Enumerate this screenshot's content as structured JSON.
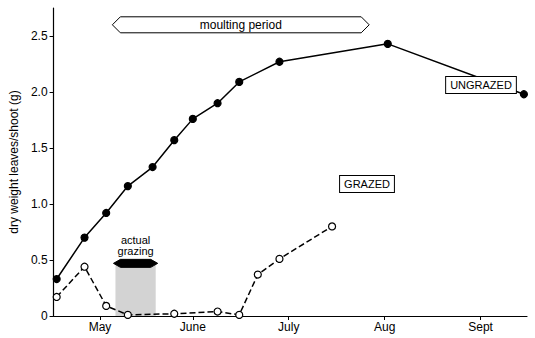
{
  "chart_data": {
    "type": "line",
    "y_label": "dry weight leaves/shoot (g)",
    "xlim": [
      0,
      153
    ],
    "xticks": [
      {
        "value": 15,
        "label": "May"
      },
      {
        "value": 45,
        "label": "June"
      },
      {
        "value": 76,
        "label": "July"
      },
      {
        "value": 107,
        "label": "Aug"
      },
      {
        "value": 138,
        "label": "Sept"
      }
    ],
    "ylim": [
      0,
      2.75
    ],
    "yticks": [
      0,
      0.5,
      {
        "value": 1,
        "label": "1.0"
      },
      1.5,
      {
        "value": 2,
        "label": "2.0"
      },
      2.5
    ],
    "grid": false,
    "series": [
      {
        "name": "UNGRAZED",
        "color": "#000000",
        "marker": "circle",
        "line_style": "solid",
        "x": [
          1,
          10,
          17,
          24,
          32,
          39,
          45,
          53,
          60,
          73,
          108,
          152
        ],
        "values": [
          0.33,
          0.7,
          0.92,
          1.16,
          1.33,
          1.57,
          1.76,
          1.9,
          2.09,
          2.27,
          2.43,
          1.98
        ]
      },
      {
        "name": "GRAZED",
        "color": "#000000",
        "marker": "emptyCircle",
        "line_style": "dashed",
        "x": [
          1,
          10,
          17,
          24,
          39,
          53,
          60,
          66,
          73,
          90
        ],
        "values": [
          0.17,
          0.44,
          0.09,
          0.01,
          0.02,
          0.04,
          0.01,
          0.37,
          0.51,
          0.8
        ]
      }
    ],
    "annotations": [
      {
        "text": "moulting period",
        "start": 19,
        "end": 102,
        "level": 2.6
      },
      {
        "text": "actual grazing",
        "start": 20,
        "end": 33,
        "level": 0.47
      }
    ]
  }
}
